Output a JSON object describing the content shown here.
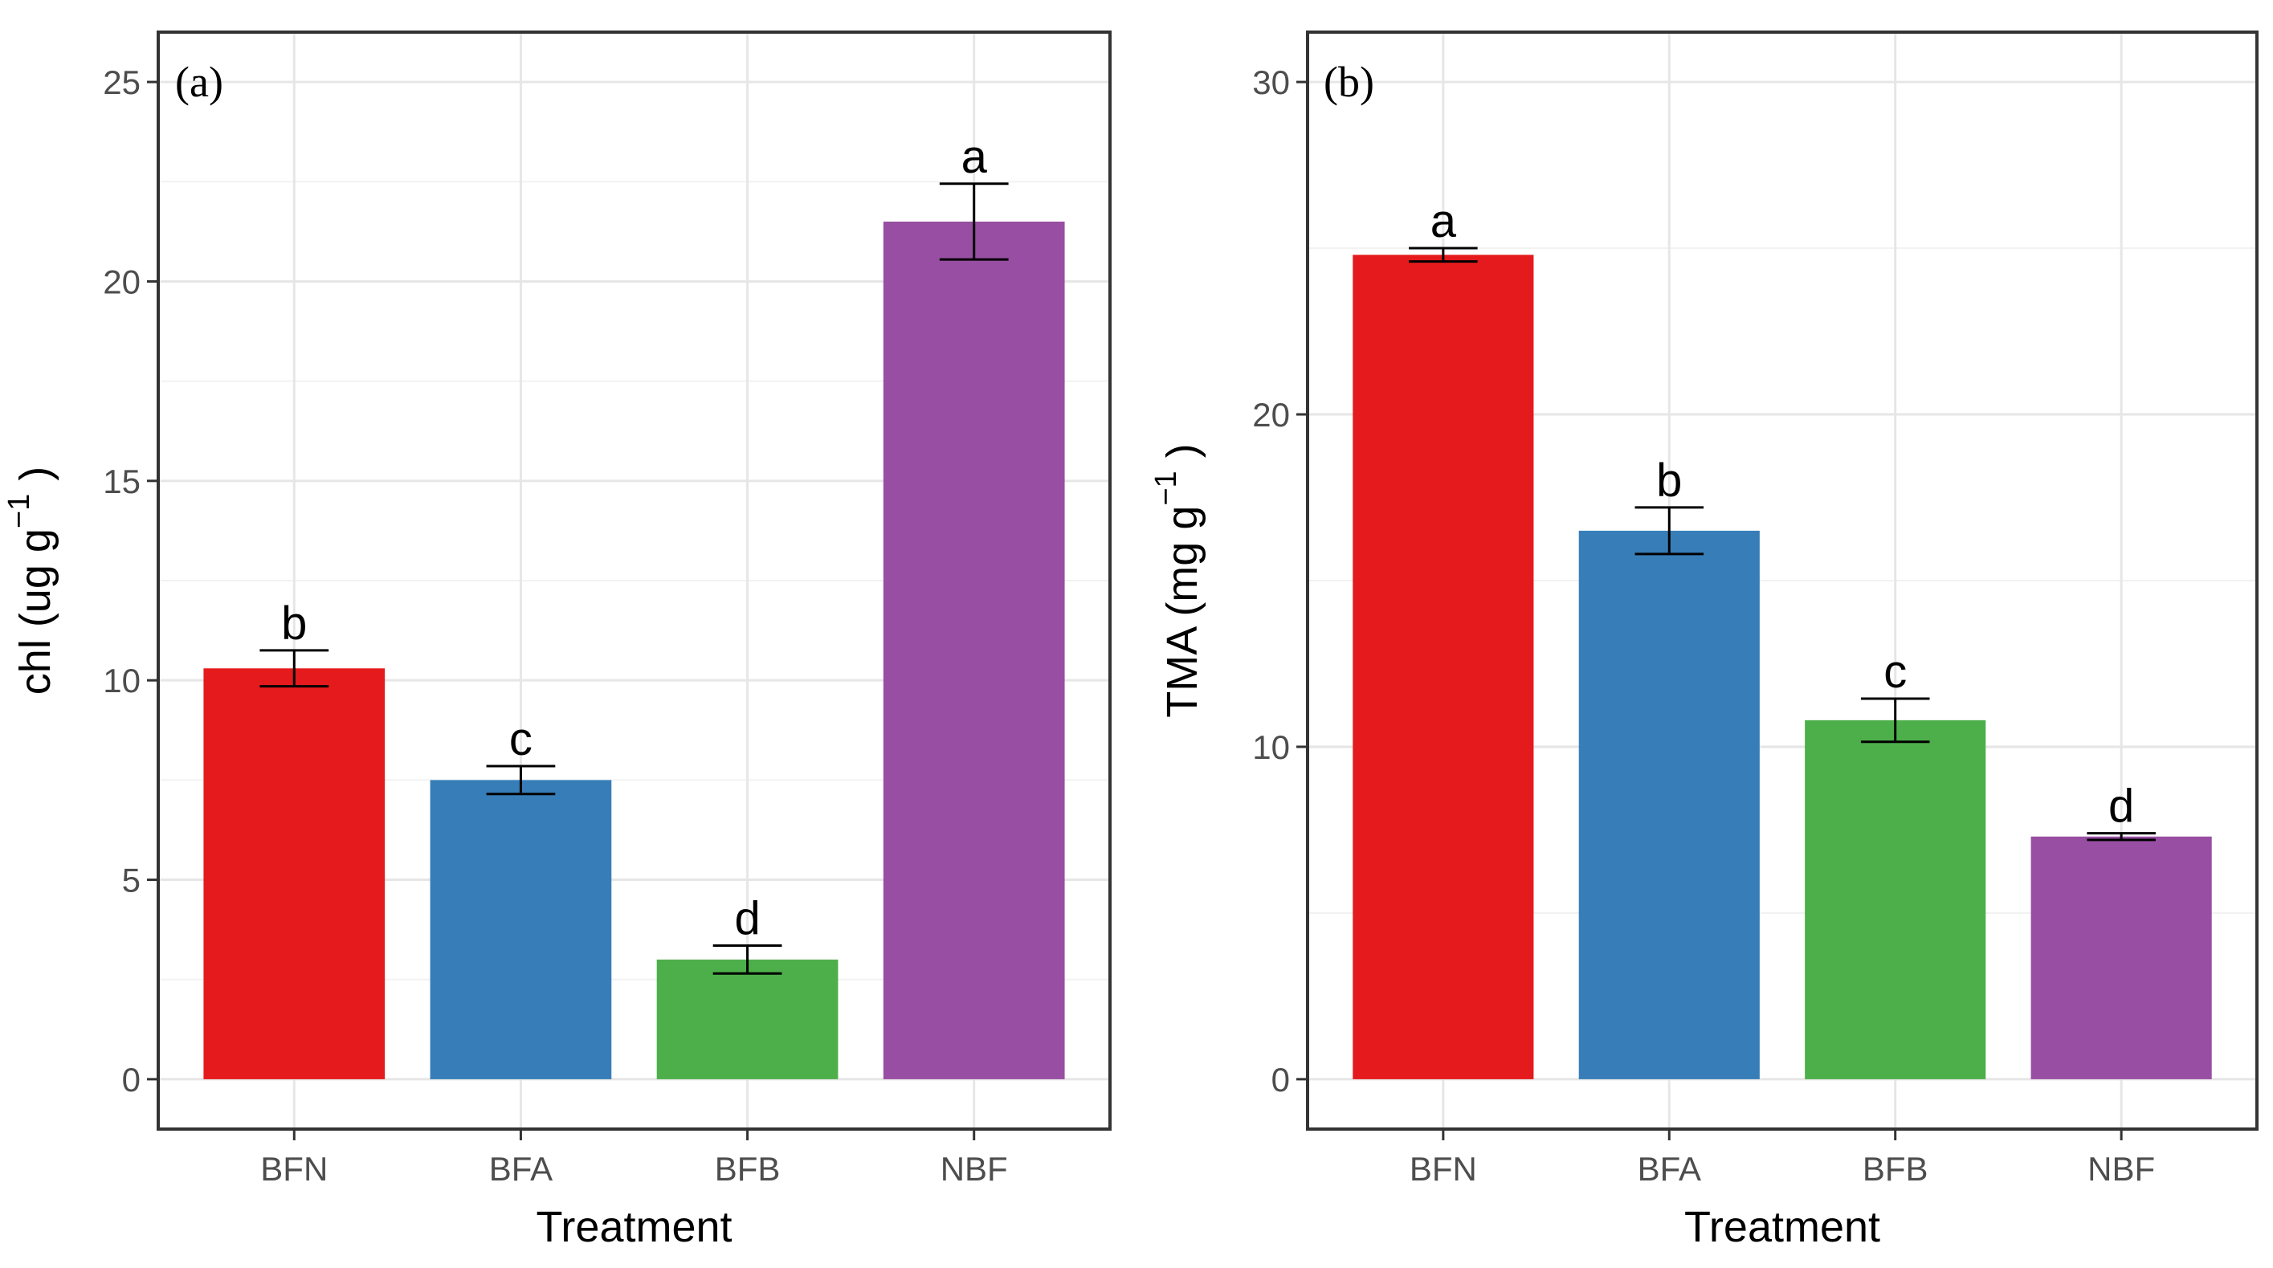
{
  "chart_data": [
    {
      "type": "bar",
      "panel": "(a)",
      "categories": [
        "BFN",
        "BFA",
        "BFB",
        "NBF"
      ],
      "values": [
        10.3,
        7.5,
        3.0,
        21.5
      ],
      "error": [
        0.45,
        0.35,
        0.35,
        0.95
      ],
      "significance": [
        "b",
        "c",
        "d",
        "a"
      ],
      "colors": [
        "#e41a1c",
        "#377eb8",
        "#4daf4a",
        "#984ea3"
      ],
      "xlabel": "Treatment",
      "ylabel_main": "chl (ug g",
      "ylabel_sup": "−1",
      "ylabel_close": ")",
      "ylim": [
        0,
        25
      ],
      "yticks": [
        0,
        5,
        10,
        15,
        20,
        25
      ],
      "grid": true
    },
    {
      "type": "bar",
      "panel": "(b)",
      "categories": [
        "BFN",
        "BFA",
        "BFB",
        "NBF"
      ],
      "values": [
        24.8,
        16.5,
        10.8,
        7.3
      ],
      "error": [
        0.2,
        0.7,
        0.65,
        0.1
      ],
      "significance": [
        "a",
        "b",
        "c",
        "d"
      ],
      "colors": [
        "#e41a1c",
        "#377eb8",
        "#4daf4a",
        "#984ea3"
      ],
      "xlabel": "Treatment",
      "ylabel_main": "TMA (mg  g",
      "ylabel_sup": "−1",
      "ylabel_close": ")",
      "ylim": [
        0,
        30
      ],
      "yticks": [
        0,
        10,
        20,
        30
      ],
      "grid": true
    }
  ]
}
